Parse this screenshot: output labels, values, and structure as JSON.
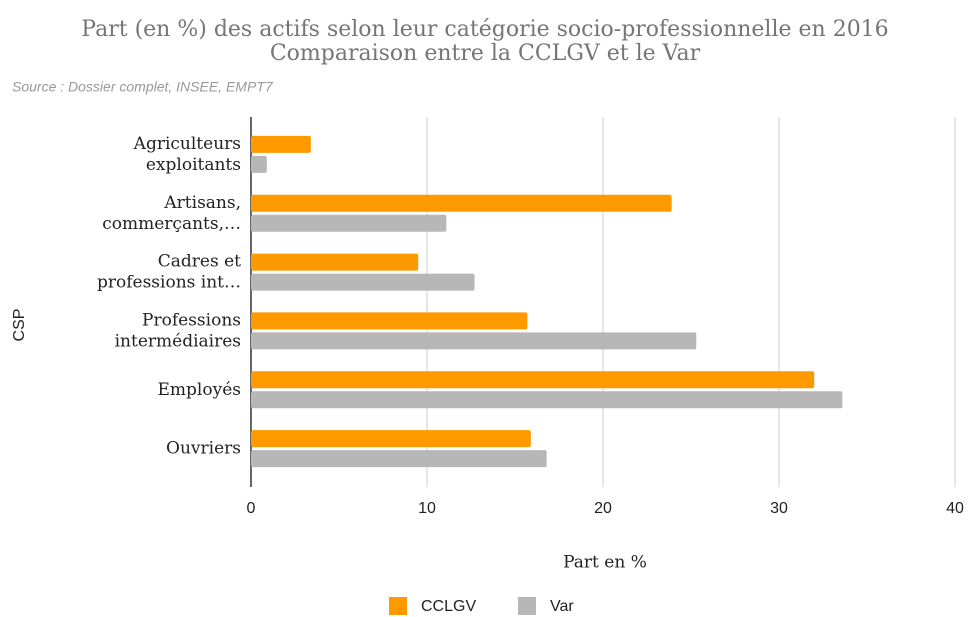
{
  "chart_data": {
    "type": "barh",
    "title": "Part (en %) des actifs selon leur catégorie socio-professionnelle en 2016",
    "subtitle": "Comparaison entre la CCLGV et le Var",
    "source": "Source : Dossier complet, INSEE, EMPT7",
    "xlabel": "Part en %",
    "ylabel": "CSP",
    "categories": [
      "Agriculteurs\nexploitants",
      "Artisans,\ncommerçants,…",
      "Cadres et\nprofessions int…",
      "Professions\nintermédiaires",
      "Employés",
      "Ouvriers"
    ],
    "series": [
      {
        "name": "CCLGV",
        "color": "#ff9900",
        "values": [
          3.4,
          23.9,
          9.5,
          15.7,
          32.0,
          15.9
        ]
      },
      {
        "name": "Var",
        "color": "#b7b7b7",
        "values": [
          0.9,
          11.1,
          12.7,
          25.3,
          33.6,
          16.8
        ]
      }
    ],
    "xlim": [
      0,
      40
    ],
    "xticks": [
      0,
      10,
      20,
      30,
      40
    ],
    "grid": true
  }
}
